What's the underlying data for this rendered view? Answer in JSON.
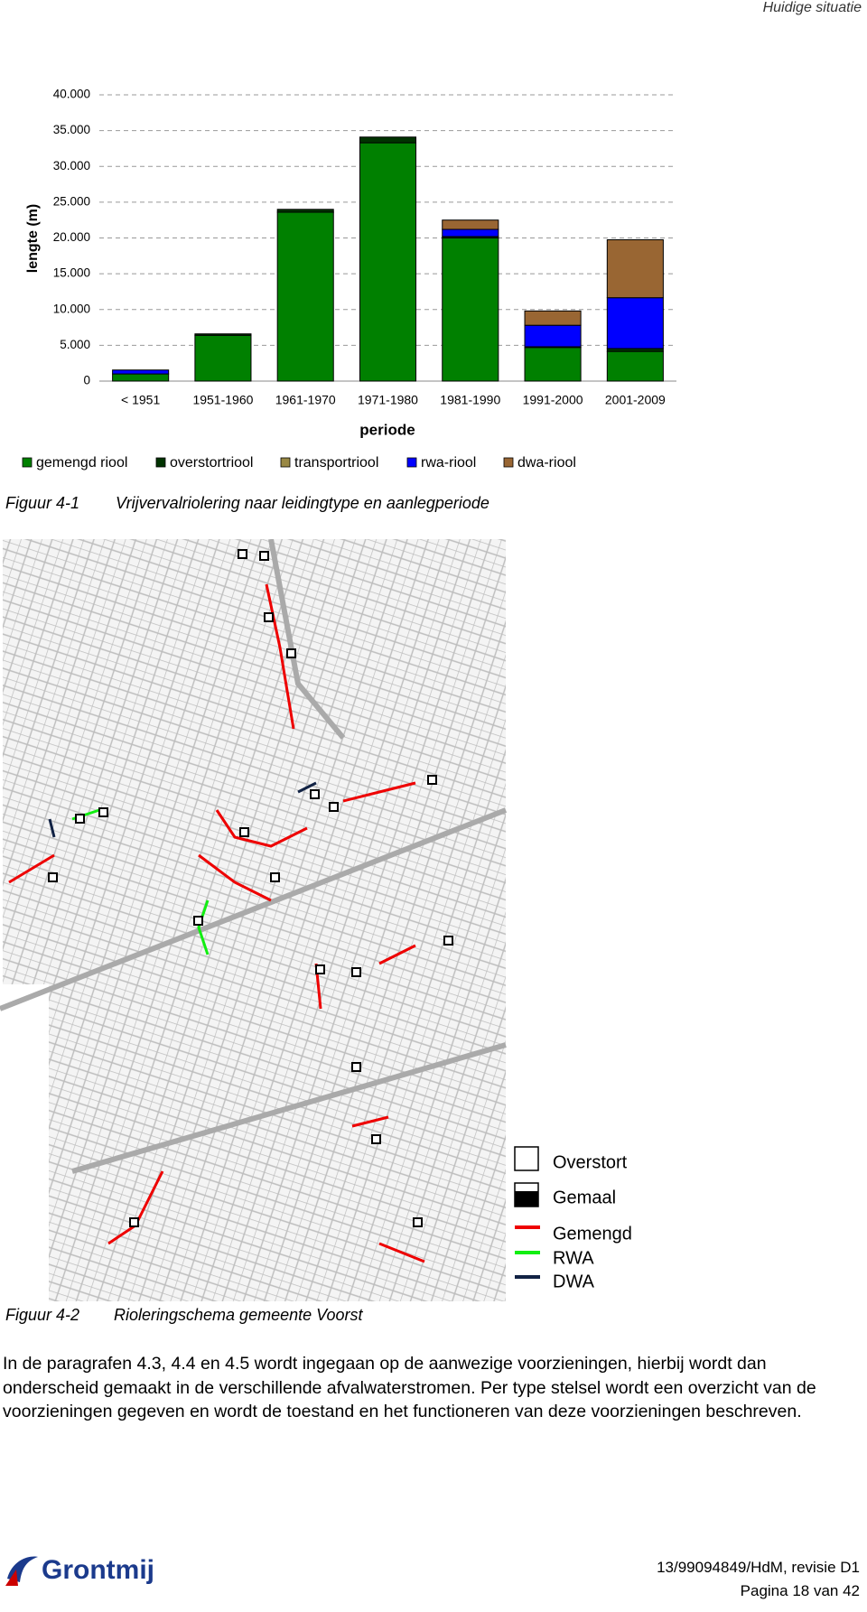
{
  "header": {
    "title": "Huidige situatie"
  },
  "chart_data": {
    "type": "bar",
    "stacked": true,
    "y_label": "lengte (m)",
    "x_label": "periode",
    "categories": [
      "< 1951",
      "1951-1960",
      "1961-1970",
      "1971-1980",
      "1981-1990",
      "1991-2000",
      "2001-2009"
    ],
    "series": [
      {
        "name": "gemengd riool",
        "color": "#008000",
        "values": [
          1000,
          6400,
          23600,
          33300,
          20000,
          4700,
          4150
        ]
      },
      {
        "name": "overstortriool",
        "color": "#003300",
        "values": [
          0,
          200,
          400,
          800,
          200,
          100,
          400
        ]
      },
      {
        "name": "transportriool",
        "color": "#998844",
        "values": [
          0,
          0,
          0,
          0,
          0,
          0,
          0
        ]
      },
      {
        "name": "rwa-riool",
        "color": "#0000ff",
        "values": [
          550,
          0,
          0,
          0,
          1000,
          3000,
          7100
        ]
      },
      {
        "name": "dwa-riool",
        "color": "#996633",
        "values": [
          0,
          0,
          0,
          0,
          1300,
          2000,
          8100
        ]
      }
    ],
    "ylim": [
      0,
      40000
    ],
    "yticks": [
      0,
      {
        "value": 5000,
        "label": "5.000"
      },
      {
        "value": 10000,
        "label": "10.000"
      },
      {
        "value": 15000,
        "label": "15.000"
      },
      {
        "value": 20000,
        "label": "20.000"
      },
      {
        "value": 25000,
        "label": "25.000"
      },
      {
        "value": 30000,
        "label": "30.000"
      },
      {
        "value": 35000,
        "label": "35.000"
      },
      {
        "value": 40000,
        "label": "40.000"
      }
    ],
    "grid": true,
    "legend": "bottom"
  },
  "figure1": {
    "number": "Figuur 4-1",
    "caption": "Vrijvervalriolering naar leidingtype en aanlegperiode"
  },
  "map_legend": [
    "Overstort",
    "Gemaal",
    "Gemengd",
    "RWA",
    "DWA"
  ],
  "figure2": {
    "number": "Figuur 4-2",
    "caption": "Rioleringschema gemeente Voorst"
  },
  "paragraph": "In de paragrafen 4.3, 4.4 en 4.5 wordt ingegaan op de aanwezige voorzieningen, hierbij wordt dan onderscheid gemaakt in de verschillende afvalwaterstromen. Per type stelsel wordt een overzicht van de voorzieningen gegeven en wordt de toestand en het functioneren van deze voorzieningen beschreven.",
  "footer": {
    "logo": "Grontmij",
    "reference": "13/99094849/HdM, revisie D1",
    "page": "Pagina 18 van 42"
  }
}
